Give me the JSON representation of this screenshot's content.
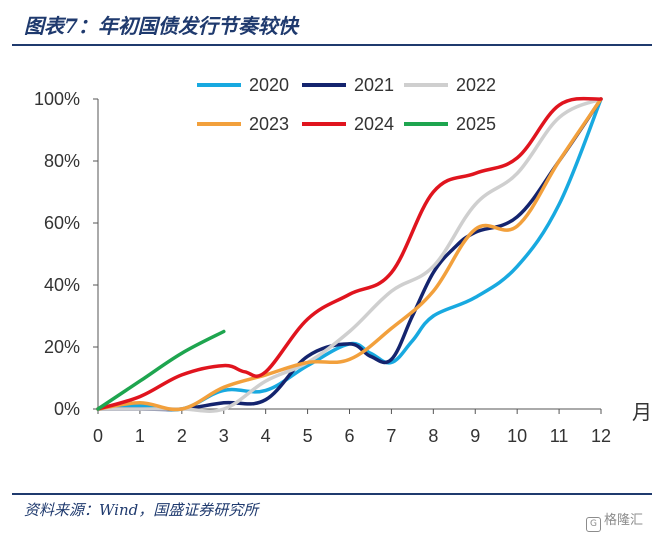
{
  "title": "图表7：年初国债发行节奏较快",
  "source": "资料来源：Wind，国盛证券研究所",
  "watermark": "格隆汇",
  "chart_data": {
    "type": "line",
    "xlabel": "月",
    "ylabel": "",
    "xlim": [
      0,
      12
    ],
    "ylim": [
      0,
      100
    ],
    "x_ticks": [
      "0",
      "1",
      "2",
      "3",
      "4",
      "5",
      "6",
      "7",
      "8",
      "9",
      "10",
      "11",
      "12"
    ],
    "y_ticks": [
      "0%",
      "20%",
      "40%",
      "60%",
      "80%",
      "100%"
    ],
    "grid": false,
    "legend_position": "top",
    "series": [
      {
        "name": "2020",
        "color": "#18a9e0",
        "points": [
          [
            0,
            0
          ],
          [
            1,
            1
          ],
          [
            2,
            0
          ],
          [
            3,
            6
          ],
          [
            4,
            6
          ],
          [
            5,
            14
          ],
          [
            6,
            21
          ],
          [
            6.5,
            18
          ],
          [
            7,
            15
          ],
          [
            7.5,
            22
          ],
          [
            8,
            30
          ],
          [
            9,
            36
          ],
          [
            10,
            46
          ],
          [
            11,
            66
          ],
          [
            12,
            100
          ]
        ]
      },
      {
        "name": "2021",
        "color": "#14246e",
        "points": [
          [
            0,
            0
          ],
          [
            1,
            0
          ],
          [
            2,
            0
          ],
          [
            3,
            2
          ],
          [
            4,
            3
          ],
          [
            5,
            17
          ],
          [
            6,
            21
          ],
          [
            6.5,
            17
          ],
          [
            7,
            16
          ],
          [
            7.5,
            30
          ],
          [
            8,
            44
          ],
          [
            8.5,
            52
          ],
          [
            9,
            57
          ],
          [
            10,
            62
          ],
          [
            11,
            80
          ],
          [
            12,
            100
          ]
        ]
      },
      {
        "name": "2022",
        "color": "#cfcfcf",
        "points": [
          [
            0,
            0
          ],
          [
            1,
            0
          ],
          [
            2,
            0
          ],
          [
            3,
            0
          ],
          [
            4,
            9
          ],
          [
            5,
            15
          ],
          [
            6,
            25
          ],
          [
            7,
            38
          ],
          [
            8,
            46
          ],
          [
            9,
            66
          ],
          [
            10,
            76
          ],
          [
            11,
            94
          ],
          [
            12,
            100
          ]
        ]
      },
      {
        "name": "2023",
        "color": "#f2a03c",
        "points": [
          [
            0,
            0
          ],
          [
            1,
            2
          ],
          [
            2,
            0
          ],
          [
            3,
            7
          ],
          [
            4,
            11
          ],
          [
            5,
            15
          ],
          [
            6,
            16
          ],
          [
            7,
            26
          ],
          [
            8,
            38
          ],
          [
            9,
            58
          ],
          [
            10,
            59
          ],
          [
            11,
            80
          ],
          [
            12,
            100
          ]
        ]
      },
      {
        "name": "2024",
        "color": "#e0141e",
        "points": [
          [
            0,
            0
          ],
          [
            1,
            4
          ],
          [
            2,
            11
          ],
          [
            3,
            14
          ],
          [
            3.5,
            12
          ],
          [
            4,
            12
          ],
          [
            5,
            29
          ],
          [
            6,
            37
          ],
          [
            7,
            44
          ],
          [
            8,
            70
          ],
          [
            9,
            76
          ],
          [
            10,
            81
          ],
          [
            11,
            98
          ],
          [
            12,
            100
          ]
        ]
      },
      {
        "name": "2025",
        "color": "#1ea54f",
        "points": [
          [
            0,
            0
          ],
          [
            1,
            9
          ],
          [
            2,
            18
          ],
          [
            3,
            25
          ]
        ]
      }
    ]
  }
}
